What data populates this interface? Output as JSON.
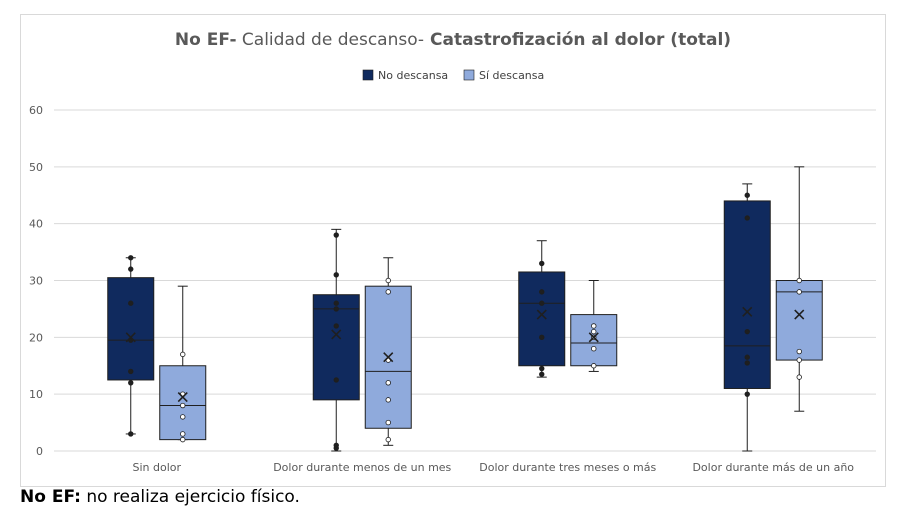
{
  "chart_data": {
    "type": "boxplot",
    "title_parts": [
      {
        "text": "No EF-",
        "bold": true
      },
      {
        "text": " Calidad de descanso-",
        "bold": false
      },
      {
        "text": " Catastrofización al dolor (total)",
        "bold": true
      }
    ],
    "ylim": [
      0,
      60
    ],
    "yticks": [
      0,
      10,
      20,
      30,
      40,
      50,
      60
    ],
    "grid": true,
    "legend_position": "top-center",
    "categories": [
      "Sin dolor",
      "Dolor durante menos de un mes",
      "Dolor durante tres meses  o más",
      "Dolor durante más de un año"
    ],
    "series": [
      {
        "name": "No descansa",
        "color": "#102a5e",
        "boxes": [
          {
            "min": 3,
            "q1": 12.5,
            "median": 19.5,
            "q3": 30.5,
            "max": 34,
            "mean": 20,
            "points": [
              3,
              12,
              14,
              19.5,
              26,
              32,
              34
            ]
          },
          {
            "min": 0,
            "q1": 9,
            "median": 25,
            "q3": 27.5,
            "max": 39,
            "mean": 20.5,
            "points": [
              0.5,
              1,
              12.5,
              22,
              25,
              26,
              31,
              38
            ]
          },
          {
            "min": 13,
            "q1": 15,
            "median": 26,
            "q3": 31.5,
            "max": 37,
            "mean": 24,
            "points": [
              13.5,
              14.5,
              20,
              26,
              28,
              33
            ]
          },
          {
            "min": 0,
            "q1": 11,
            "median": 18.5,
            "q3": 44,
            "max": 47,
            "mean": 24.5,
            "points": [
              10,
              15.5,
              16.5,
              21,
              41,
              45
            ]
          }
        ]
      },
      {
        "name": "Sí descansa",
        "color": "#8faadc",
        "boxes": [
          {
            "min": 2,
            "q1": 2,
            "median": 8,
            "q3": 15,
            "max": 29,
            "mean": 9.5,
            "points": [
              2,
              3,
              6,
              8,
              10,
              17
            ]
          },
          {
            "min": 1,
            "q1": 4,
            "median": 14,
            "q3": 29,
            "max": 34,
            "mean": 16.5,
            "points": [
              2,
              5,
              9,
              12,
              16,
              28,
              30
            ]
          },
          {
            "min": 14,
            "q1": 15,
            "median": 19,
            "q3": 24,
            "max": 30,
            "mean": 20,
            "points": [
              15,
              18,
              20,
              21,
              22
            ]
          },
          {
            "min": 7,
            "q1": 16,
            "median": 28,
            "q3": 30,
            "max": 50,
            "mean": 24,
            "points": [
              13,
              16,
              17.5,
              28,
              30
            ]
          }
        ]
      }
    ]
  },
  "footnote": {
    "bold": "No EF:",
    "text": " no realiza ejercicio físico."
  }
}
